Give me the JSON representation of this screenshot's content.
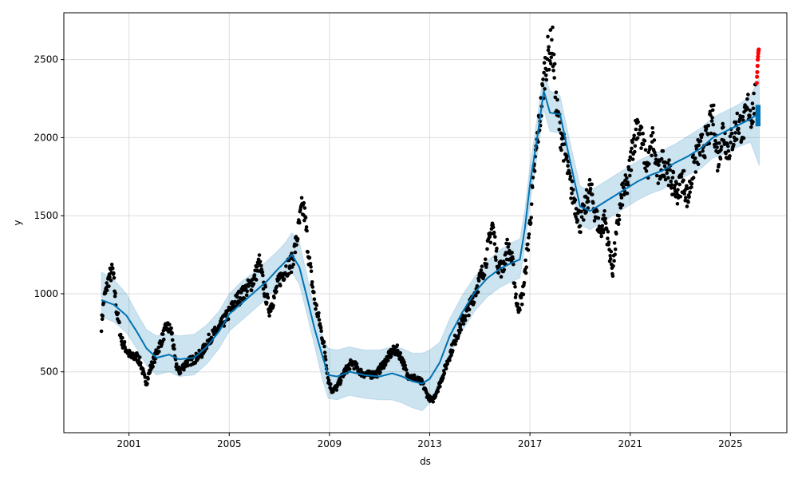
{
  "chart_data": {
    "type": "scatter",
    "title": "",
    "xlabel": "ds",
    "ylabel": "y",
    "xlim": [
      1998.4,
      2027.25
    ],
    "ylim": [
      110,
      2800
    ],
    "x_ticks": [
      2001,
      2005,
      2009,
      2013,
      2017,
      2021,
      2025
    ],
    "x_tick_labels": [
      "2001",
      "2005",
      "2009",
      "2013",
      "2017",
      "2021",
      "2025"
    ],
    "y_ticks": [
      500,
      1000,
      1500,
      2000,
      2500
    ],
    "y_tick_labels": [
      "500",
      "1000",
      "1500",
      "2000",
      "2500"
    ],
    "grid": true,
    "colors": {
      "observed": "#000000",
      "forecast_line": "#0072B2",
      "uncertainty_band": "#0072B2",
      "outliers": "#ff0000"
    },
    "forecast": {
      "x": [
        1999.9,
        2000.4,
        2000.9,
        2001.3,
        2001.7,
        2002.1,
        2002.6,
        2003.0,
        2003.6,
        2004.1,
        2004.6,
        2005.0,
        2005.5,
        2006.0,
        2006.5,
        2006.9,
        2007.2,
        2007.5,
        2007.8,
        2008.1,
        2008.4,
        2008.7,
        2008.95,
        2009.3,
        2009.8,
        2010.4,
        2011.0,
        2011.5,
        2011.9,
        2012.3,
        2012.7,
        2013.0,
        2013.4,
        2013.8,
        2014.3,
        2014.8,
        2015.3,
        2015.8,
        2016.3,
        2016.6,
        2016.8,
        2017.0,
        2017.3,
        2017.55,
        2017.8,
        2018.2,
        2018.6,
        2019.0,
        2019.4,
        2019.9,
        2020.4,
        2020.9,
        2021.3,
        2021.8,
        2022.3,
        2022.8,
        2023.3,
        2023.8,
        2024.3,
        2024.8,
        2025.3,
        2025.8,
        2026.15
      ],
      "yhat": [
        960,
        930,
        860,
        760,
        650,
        590,
        610,
        580,
        590,
        660,
        760,
        870,
        940,
        1010,
        1080,
        1150,
        1200,
        1250,
        1170,
        980,
        780,
        610,
        480,
        470,
        500,
        480,
        470,
        490,
        470,
        440,
        425,
        455,
        560,
        730,
        880,
        1010,
        1100,
        1160,
        1200,
        1220,
        1420,
        1700,
        2010,
        2300,
        2160,
        2150,
        1850,
        1560,
        1530,
        1580,
        1630,
        1680,
        1720,
        1760,
        1790,
        1840,
        1880,
        1930,
        2000,
        2040,
        2080,
        2120,
        2160
      ],
      "yhat_lower": [
        850,
        820,
        750,
        650,
        540,
        480,
        500,
        470,
        480,
        550,
        650,
        760,
        830,
        900,
        970,
        1040,
        1090,
        1140,
        1060,
        870,
        670,
        460,
        330,
        320,
        350,
        330,
        320,
        320,
        300,
        270,
        250,
        300,
        440,
        610,
        760,
        890,
        980,
        1040,
        1080,
        1100,
        1300,
        1580,
        1890,
        2180,
        2040,
        2030,
        1730,
        1440,
        1410,
        1460,
        1510,
        1560,
        1600,
        1640,
        1670,
        1720,
        1760,
        1800,
        1870,
        1900,
        1940,
        1970,
        1820
      ],
      "yhat_upper": [
        1140,
        1090,
        1000,
        880,
        770,
        730,
        750,
        730,
        740,
        800,
        890,
        1000,
        1080,
        1140,
        1210,
        1270,
        1320,
        1390,
        1330,
        1120,
        900,
        740,
        650,
        640,
        660,
        640,
        640,
        660,
        650,
        620,
        620,
        640,
        690,
        840,
        990,
        1110,
        1210,
        1280,
        1330,
        1350,
        1540,
        1820,
        2140,
        2420,
        2300,
        2270,
        1970,
        1690,
        1660,
        1710,
        1760,
        1810,
        1850,
        1890,
        1920,
        1960,
        2010,
        2060,
        2130,
        2170,
        2210,
        2270,
        2380
      ]
    },
    "observed_trace": {
      "x": [
        1999.9,
        2000.0,
        2000.2,
        2000.35,
        2000.5,
        2000.7,
        2000.9,
        2001.1,
        2001.3,
        2001.45,
        2001.6,
        2001.7,
        2001.85,
        2002.0,
        2002.2,
        2002.5,
        2002.7,
        2002.85,
        2003.0,
        2003.3,
        2003.6,
        2003.9,
        2004.2,
        2004.6,
        2005.0,
        2005.3,
        2005.6,
        2005.85,
        2006.0,
        2006.2,
        2006.4,
        2006.6,
        2006.8,
        2007.0,
        2007.3,
        2007.5,
        2007.7,
        2007.9,
        2008.0,
        2008.2,
        2008.4,
        2008.6,
        2008.8,
        2008.95,
        2009.1,
        2009.3,
        2009.6,
        2009.9,
        2010.3,
        2010.6,
        2010.9,
        2011.2,
        2011.5,
        2011.7,
        2011.9,
        2012.1,
        2012.4,
        2012.7,
        2012.9,
        2013.1,
        2013.4,
        2013.7,
        2014.0,
        2014.3,
        2014.6,
        2014.9,
        2015.2,
        2015.5,
        2015.7,
        2015.9,
        2016.1,
        2016.3,
        2016.5,
        2016.7,
        2016.85,
        2017.0,
        2017.15,
        2017.3,
        2017.45,
        2017.6,
        2017.75,
        2017.9,
        2018.05,
        2018.2,
        2018.4,
        2018.6,
        2018.8,
        2019.0,
        2019.2,
        2019.4,
        2019.6,
        2019.8,
        2020.0,
        2020.15,
        2020.3,
        2020.5,
        2020.7,
        2020.9,
        2021.1,
        2021.3,
        2021.5,
        2021.7,
        2021.9,
        2022.1,
        2022.3,
        2022.5,
        2022.7,
        2022.9,
        2023.1,
        2023.3,
        2023.5,
        2023.7,
        2023.9,
        2024.1,
        2024.3,
        2024.5,
        2024.7,
        2024.9,
        2025.1,
        2025.3,
        2025.5,
        2025.7,
        2025.85,
        2026.0
      ],
      "y": [
        800,
        960,
        1100,
        1150,
        900,
        700,
        640,
        590,
        600,
        560,
        470,
        430,
        520,
        580,
        660,
        790,
        760,
        560,
        500,
        560,
        580,
        620,
        710,
        780,
        880,
        960,
        1010,
        1060,
        1100,
        1200,
        1030,
        900,
        980,
        1090,
        1170,
        1200,
        1350,
        1550,
        1520,
        1200,
        960,
        820,
        650,
        450,
        380,
        400,
        500,
        560,
        490,
        480,
        490,
        560,
        630,
        640,
        580,
        480,
        460,
        430,
        350,
        310,
        420,
        560,
        700,
        820,
        920,
        1050,
        1180,
        1450,
        1200,
        1150,
        1300,
        1200,
        900,
        980,
        1200,
        1450,
        1750,
        2000,
        2200,
        2450,
        2550,
        2600,
        2200,
        2050,
        1900,
        1700,
        1580,
        1450,
        1550,
        1680,
        1520,
        1400,
        1480,
        1300,
        1150,
        1450,
        1650,
        1700,
        1950,
        2100,
        1950,
        1800,
        2000,
        1750,
        1850,
        1800,
        1700,
        1650,
        1750,
        1600,
        1800,
        1900,
        1950,
        2000,
        2150,
        1850,
        2050,
        1920,
        2000,
        2100,
        2050,
        2200,
        2150,
        2250
      ]
    },
    "future_x_start": 2026.0,
    "future_x_end": 2026.2,
    "outliers": {
      "x": [
        2026.05,
        2026.06,
        2026.07,
        2026.08,
        2026.09,
        2026.1,
        2026.11,
        2026.12,
        2026.13
      ],
      "y": [
        2350,
        2390,
        2420,
        2460,
        2500,
        2520,
        2540,
        2555,
        2565
      ]
    }
  }
}
